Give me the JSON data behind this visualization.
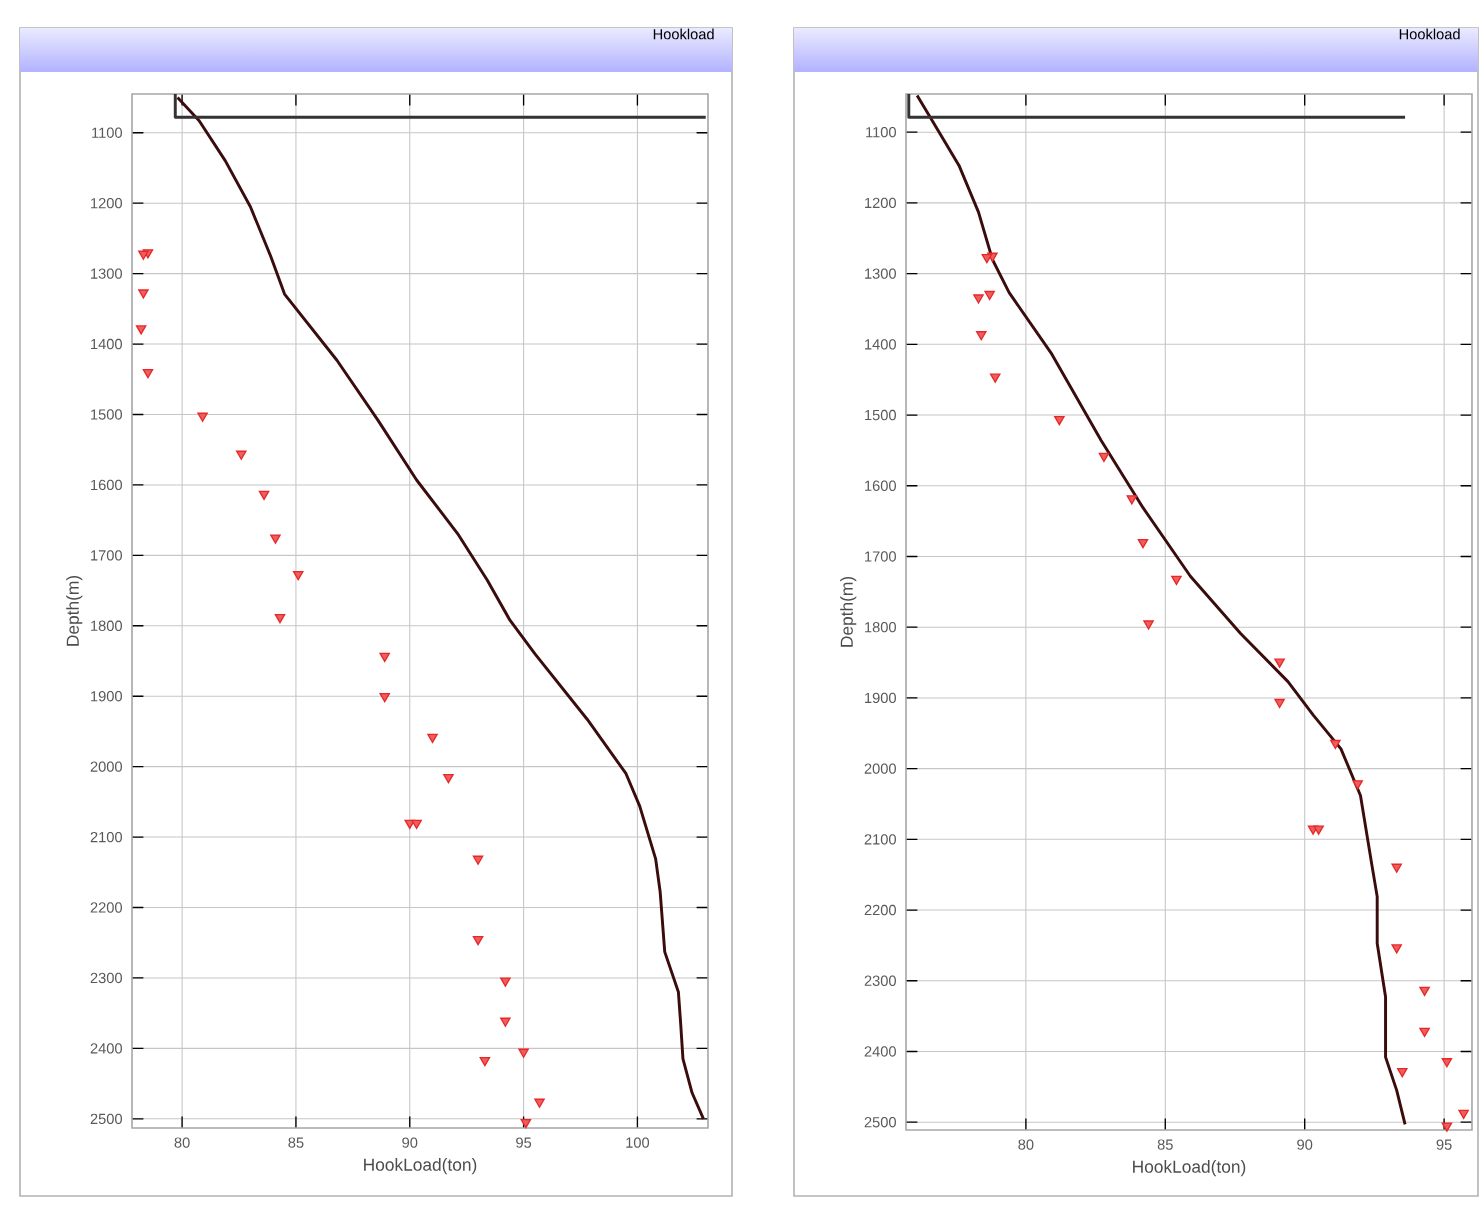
{
  "chart_data": [
    {
      "type": "scatter",
      "title": "Hookload",
      "xlabel": "HookLoad(ton)",
      "ylabel": "Depth(m)",
      "xlim": [
        77.8,
        103.1
      ],
      "ylim": [
        2513,
        1045
      ],
      "xticks": [
        80,
        85,
        90,
        95,
        100
      ],
      "yticks": [
        1100,
        1200,
        1300,
        1400,
        1500,
        1600,
        1700,
        1800,
        1900,
        2000,
        2100,
        2200,
        2300,
        2400,
        2500
      ],
      "grid": true,
      "series": [
        {
          "type": "line",
          "color": "#3a0c0c",
          "x": [
            79.8,
            80.75,
            81.9,
            83.0,
            83.9,
            84.5,
            86.8,
            88.6,
            90.3,
            92.1,
            93.4,
            94.4,
            95.5,
            97.8,
            99.5,
            100.1,
            100.8,
            101.0,
            101.2,
            101.8,
            101.9,
            102.0,
            102.4,
            102.9
          ],
          "values": [
            1050,
            1083,
            1140,
            1205,
            1276,
            1329,
            1423,
            1508,
            1593,
            1669,
            1735,
            1792,
            1840,
            1933,
            2010,
            2056,
            2131,
            2178,
            2263,
            2320,
            2365,
            2415,
            2463,
            2500
          ]
        },
        {
          "type": "line",
          "color": "#333333",
          "x": [
            79.7,
            79.7,
            103.0
          ],
          "values": [
            1045,
            1078,
            1078
          ]
        },
        {
          "type": "scatter",
          "color": "#e82828",
          "marker": "triangle",
          "x": [
            78.5,
            78.3,
            78.3,
            78.2,
            78.5,
            80.9,
            82.6,
            83.6,
            84.1,
            85.1,
            84.3,
            88.9,
            88.9,
            91.0,
            91.7,
            90.0,
            90.3,
            93.0,
            93.0,
            94.2,
            94.2,
            93.3,
            95.0,
            95.7,
            95.1
          ],
          "values": [
            1270,
            1272,
            1327,
            1378,
            1440,
            1502,
            1556,
            1613,
            1675,
            1727,
            1788,
            1843,
            1900,
            1958,
            2015,
            2080,
            2080,
            2131,
            2245,
            2304,
            2361,
            2417,
            2405,
            2476,
            2505
          ]
        }
      ]
    },
    {
      "type": "scatter",
      "title": "Hookload",
      "xlabel": "HookLoad(ton)",
      "ylabel": "Depth(m)",
      "xlim": [
        75.7,
        96.0
      ],
      "ylim": [
        2511,
        1046
      ],
      "xticks": [
        80,
        85,
        90,
        95
      ],
      "yticks": [
        1100,
        1200,
        1300,
        1400,
        1500,
        1600,
        1700,
        1800,
        1900,
        2000,
        2100,
        2200,
        2300,
        2400,
        2500
      ],
      "grid": true,
      "series": [
        {
          "type": "line",
          "color": "#3a0c0c",
          "x": [
            76.1,
            76.6,
            77.6,
            78.3,
            78.8,
            79.4,
            80.9,
            82.7,
            84.2,
            85.9,
            87.7,
            89.4,
            90.3,
            91.3,
            92.0,
            92.4,
            92.6,
            92.6,
            92.9,
            92.9,
            93.3,
            93.6
          ],
          "values": [
            1048,
            1081,
            1147,
            1213,
            1280,
            1327,
            1412,
            1536,
            1631,
            1728,
            1809,
            1877,
            1924,
            1972,
            2038,
            2134,
            2181,
            2247,
            2323,
            2408,
            2455,
            2503
          ]
        },
        {
          "type": "line",
          "color": "#333333",
          "x": [
            75.8,
            75.8,
            93.6
          ],
          "values": [
            1046,
            1079,
            1079
          ]
        },
        {
          "type": "scatter",
          "color": "#e82828",
          "marker": "triangle",
          "x": [
            78.8,
            78.6,
            78.3,
            78.7,
            78.4,
            78.9,
            81.2,
            82.8,
            83.8,
            84.2,
            85.4,
            84.4,
            89.1,
            89.1,
            91.1,
            91.9,
            90.3,
            90.5,
            93.3,
            93.3,
            94.3,
            94.3,
            93.5,
            95.1,
            95.7,
            95.1
          ],
          "values": [
            1275,
            1277,
            1334,
            1329,
            1386,
            1446,
            1506,
            1558,
            1618,
            1680,
            1732,
            1795,
            1849,
            1906,
            1964,
            2021,
            2085,
            2085,
            2139,
            2253,
            2313,
            2371,
            2428,
            2414,
            2487,
            2505
          ]
        }
      ]
    }
  ]
}
